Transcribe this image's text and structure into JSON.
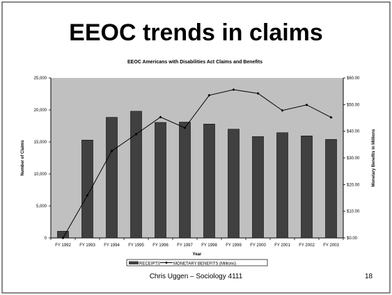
{
  "slide": {
    "title": "EEOC trends in claims",
    "footer_text": "Chris Uggen – Sociology 4111",
    "page_number": "18"
  },
  "colors": {
    "plot_bg": "#c0c0c0",
    "bar": "#404040",
    "line": "#000000",
    "border": "#606060"
  },
  "chart_data": {
    "type": "bar",
    "title": "EEOC Americans with Disabilities Act Claims and Benefits",
    "xlabel": "Year",
    "ylabel": "Number of Claims",
    "ylabel_right": "Monetary Benefits in Millions",
    "categories": [
      "FY 1992",
      "FY 1993",
      "FY 1994",
      "FY 1995",
      "FY 1996",
      "FY 1997",
      "FY 1998",
      "FY 1999",
      "FY 2000",
      "FY 2001",
      "FY 2002",
      "FY 2003"
    ],
    "ylim": [
      0,
      25000
    ],
    "yticks": [
      "0",
      "5,000",
      "10,000",
      "15,000",
      "20,000",
      "25,000"
    ],
    "ylim_right": [
      0,
      60
    ],
    "yticks_right": [
      "$0.00",
      "$10.00",
      "$20.00",
      "$30.00",
      "$40.00",
      "$50.00",
      "$60.00"
    ],
    "series": [
      {
        "name": "RECEIPTS",
        "kind": "bar",
        "values": [
          1050,
          15300,
          18850,
          19800,
          18050,
          18100,
          17800,
          17000,
          15850,
          16450,
          15950,
          15400
        ]
      },
      {
        "name": "MONETARY BENEFITS (Millions)",
        "kind": "line",
        "axis": "right",
        "values": [
          0.0,
          15.9,
          32.6,
          38.9,
          45.3,
          41.3,
          53.5,
          55.6,
          54.2,
          47.8,
          49.9,
          45.2
        ]
      }
    ],
    "grid": false,
    "legend_position": "bottom"
  }
}
